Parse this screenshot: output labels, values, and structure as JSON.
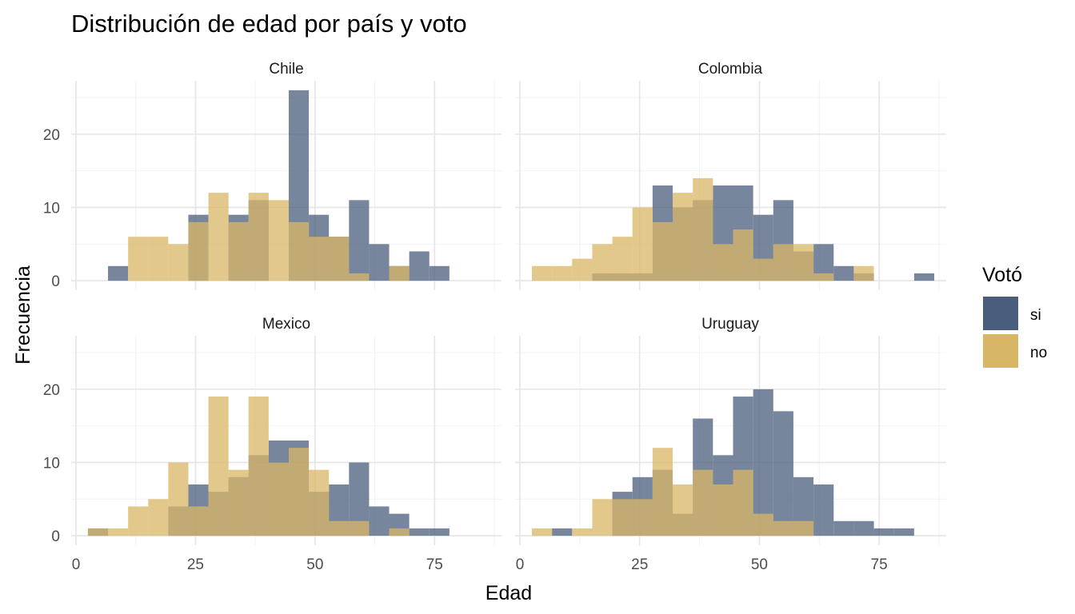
{
  "chart_data": {
    "type": "histogram",
    "title": "Distribución de edad por país y voto",
    "xlabel": "Edad",
    "ylabel": "Frecuencia",
    "xlim": [
      -1,
      89
    ],
    "ylim": [
      -1.3,
      27.3
    ],
    "x_ticks": [
      0,
      25,
      50,
      75
    ],
    "y_ticks": [
      0,
      10,
      20
    ],
    "bin_width": 4.2,
    "legend": {
      "title": "Votó",
      "position": "right",
      "entries": [
        {
          "label": "si",
          "color": "#4b5d7c"
        },
        {
          "label": "no",
          "color": "#d9b566"
        }
      ]
    },
    "colors": {
      "si": "#4b5d7c",
      "no": "#d9b566"
    },
    "panels": [
      {
        "name": "Chile",
        "series": [
          {
            "name": "si",
            "bins": [
              [
                6.7,
                2
              ],
              [
                23.5,
                9
              ],
              [
                31.9,
                9
              ],
              [
                36.1,
                11
              ],
              [
                44.5,
                26
              ],
              [
                48.7,
                9
              ],
              [
                52.9,
                6
              ],
              [
                57.1,
                11
              ],
              [
                61.3,
                5
              ],
              [
                65.5,
                2
              ],
              [
                69.7,
                4
              ],
              [
                73.9,
                2
              ]
            ]
          },
          {
            "name": "no",
            "bins": [
              [
                10.9,
                6
              ],
              [
                15.1,
                6
              ],
              [
                19.3,
                5
              ],
              [
                23.5,
                8
              ],
              [
                27.7,
                12
              ],
              [
                31.9,
                8
              ],
              [
                36.1,
                12
              ],
              [
                40.3,
                11
              ],
              [
                44.5,
                8
              ],
              [
                48.7,
                6
              ],
              [
                52.9,
                6
              ],
              [
                57.1,
                1
              ],
              [
                65.5,
                2
              ]
            ]
          }
        ]
      },
      {
        "name": "Colombia",
        "series": [
          {
            "name": "si",
            "bins": [
              [
                15.1,
                1
              ],
              [
                19.3,
                1
              ],
              [
                23.5,
                1
              ],
              [
                27.7,
                13
              ],
              [
                31.9,
                10
              ],
              [
                36.1,
                11
              ],
              [
                40.3,
                13
              ],
              [
                44.5,
                13
              ],
              [
                48.7,
                9
              ],
              [
                52.9,
                11
              ],
              [
                57.1,
                4
              ],
              [
                61.3,
                5
              ],
              [
                65.5,
                2
              ],
              [
                69.7,
                1
              ],
              [
                82.3,
                1
              ]
            ]
          },
          {
            "name": "no",
            "bins": [
              [
                2.5,
                2
              ],
              [
                6.7,
                2
              ],
              [
                10.9,
                3
              ],
              [
                15.1,
                5
              ],
              [
                19.3,
                6
              ],
              [
                23.5,
                10
              ],
              [
                27.7,
                8
              ],
              [
                31.9,
                12
              ],
              [
                36.1,
                14
              ],
              [
                40.3,
                5
              ],
              [
                44.5,
                7
              ],
              [
                48.7,
                3
              ],
              [
                52.9,
                5
              ],
              [
                57.1,
                5
              ],
              [
                61.3,
                1
              ],
              [
                69.7,
                2
              ]
            ]
          }
        ]
      },
      {
        "name": "Mexico",
        "series": [
          {
            "name": "si",
            "bins": [
              [
                2.5,
                1
              ],
              [
                19.3,
                4
              ],
              [
                23.5,
                7
              ],
              [
                27.7,
                6
              ],
              [
                31.9,
                8
              ],
              [
                36.1,
                11
              ],
              [
                40.3,
                13
              ],
              [
                44.5,
                13
              ],
              [
                48.7,
                6
              ],
              [
                52.9,
                7
              ],
              [
                57.1,
                10
              ],
              [
                61.3,
                4
              ],
              [
                65.5,
                3
              ],
              [
                69.7,
                1
              ],
              [
                73.9,
                1
              ]
            ]
          },
          {
            "name": "no",
            "bins": [
              [
                2.5,
                1
              ],
              [
                6.7,
                1
              ],
              [
                10.9,
                4
              ],
              [
                15.1,
                5
              ],
              [
                19.3,
                10
              ],
              [
                23.5,
                4
              ],
              [
                27.7,
                19
              ],
              [
                31.9,
                9
              ],
              [
                36.1,
                19
              ],
              [
                40.3,
                10
              ],
              [
                44.5,
                12
              ],
              [
                48.7,
                9
              ],
              [
                52.9,
                2
              ],
              [
                57.1,
                2
              ],
              [
                65.5,
                1
              ]
            ]
          }
        ]
      },
      {
        "name": "Uruguay",
        "series": [
          {
            "name": "si",
            "bins": [
              [
                6.7,
                1
              ],
              [
                19.3,
                6
              ],
              [
                23.5,
                8
              ],
              [
                27.7,
                9
              ],
              [
                31.9,
                3
              ],
              [
                36.1,
                16
              ],
              [
                40.3,
                11
              ],
              [
                44.5,
                19
              ],
              [
                48.7,
                20
              ],
              [
                52.9,
                17
              ],
              [
                57.1,
                8
              ],
              [
                61.3,
                7
              ],
              [
                65.5,
                2
              ],
              [
                69.7,
                2
              ],
              [
                73.9,
                1
              ],
              [
                78.1,
                1
              ]
            ]
          },
          {
            "name": "no",
            "bins": [
              [
                2.5,
                1
              ],
              [
                10.9,
                1
              ],
              [
                15.1,
                5
              ],
              [
                19.3,
                5
              ],
              [
                23.5,
                5
              ],
              [
                27.7,
                12
              ],
              [
                31.9,
                7
              ],
              [
                36.1,
                9
              ],
              [
                40.3,
                7
              ],
              [
                44.5,
                9
              ],
              [
                48.7,
                3
              ],
              [
                52.9,
                2
              ],
              [
                57.1,
                2
              ]
            ]
          }
        ]
      }
    ]
  }
}
